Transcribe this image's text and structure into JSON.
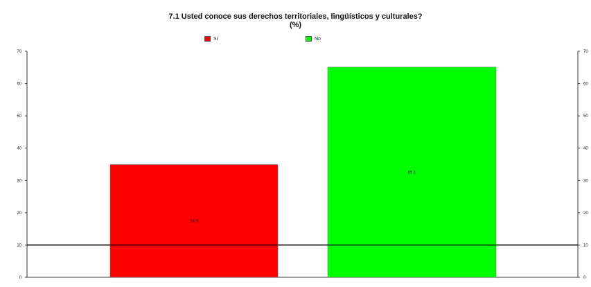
{
  "chart_data": {
    "type": "bar",
    "title_line1": "7.1 Usted conoce sus derechos territoriales, lingüísticos y culturales?",
    "title_line2": "(%)",
    "categories": [
      "Sí",
      "No"
    ],
    "values": [
      34.9,
      65.1
    ],
    "value_labels": [
      "34.9",
      "65.1"
    ],
    "colors": [
      "#ff0000",
      "#00ff00"
    ],
    "legend": [
      {
        "label": "Sí",
        "color": "#ff0000"
      },
      {
        "label": "No",
        "color": "#00ff00"
      }
    ],
    "ylim": [
      0,
      70
    ],
    "yticks": [
      0,
      10,
      20,
      30,
      40,
      50,
      60,
      70
    ],
    "ytick_labels": [
      "0",
      "10",
      "20",
      "30",
      "40",
      "50",
      "60",
      "70"
    ],
    "highlight_gridline": 10,
    "xlabel": "",
    "ylabel": "",
    "grid": false,
    "legend_position": "top"
  }
}
